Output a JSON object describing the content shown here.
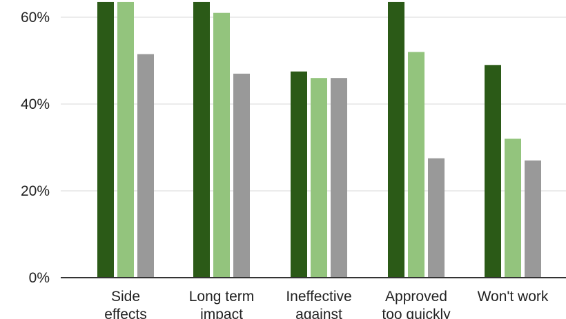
{
  "chart_data": {
    "type": "bar",
    "categories": [
      [
        "Side",
        "effects"
      ],
      [
        "Long term",
        "impact"
      ],
      [
        "Ineffective",
        "against"
      ],
      [
        "Approved",
        "too quickly"
      ],
      [
        "Won't work"
      ]
    ],
    "series": [
      {
        "color": "#2b5a17",
        "values": [
          68,
          68,
          47.5,
          68,
          49
        ]
      },
      {
        "color": "#93c47d",
        "values": [
          68,
          61,
          46,
          52,
          32
        ]
      },
      {
        "color": "#999999",
        "values": [
          51.5,
          47,
          46,
          27.5,
          27
        ]
      }
    ],
    "y_ticks": [
      "0%",
      "20%",
      "40%",
      "60%"
    ],
    "y_tick_values": [
      0,
      20,
      40,
      60
    ],
    "ylim": [
      0,
      63.5
    ],
    "grid": true,
    "legend": "none",
    "title": "",
    "xlabel": "",
    "ylabel": ""
  }
}
